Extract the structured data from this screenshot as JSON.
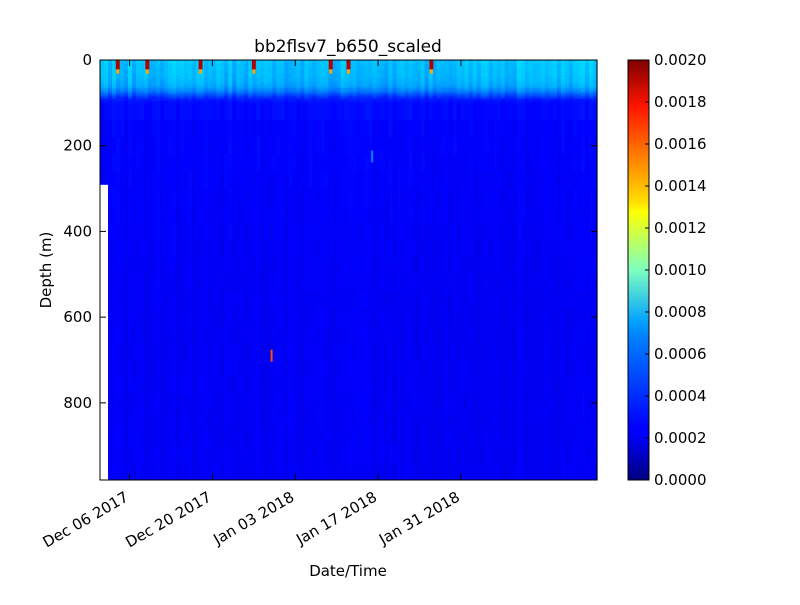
{
  "chart_data": {
    "type": "heatmap",
    "title": "bb2flsv7_b650_scaled",
    "xlabel": "Date/Time",
    "ylabel": "Depth (m)",
    "xlim": [
      "2017-12-01",
      "2018-02-23"
    ],
    "ylim": [
      980,
      0
    ],
    "x_ticks": [
      "Dec 06 2017",
      "Dec 20 2017",
      "Jan 03 2018",
      "Jan 17 2018",
      "Jan 31 2018"
    ],
    "x_tick_dates": [
      "2017-12-06",
      "2017-12-20",
      "2018-01-03",
      "2018-01-17",
      "2018-01-31"
    ],
    "y_ticks": [
      "0",
      "200",
      "400",
      "600",
      "800"
    ],
    "y_tick_values": [
      0,
      200,
      400,
      600,
      800
    ],
    "colorbar": {
      "range": [
        0,
        0.002
      ],
      "ticks": [
        "0.0000",
        "0.0002",
        "0.0004",
        "0.0006",
        "0.0008",
        "0.0010",
        "0.0012",
        "0.0014",
        "0.0016",
        "0.0018",
        "0.0020"
      ],
      "tick_values": [
        0,
        0.0002,
        0.0004,
        0.0006,
        0.0008,
        0.001,
        0.0012,
        0.0014,
        0.0016,
        0.0018,
        0.002
      ],
      "colormap": "jet"
    },
    "profile": {
      "depth": [
        0,
        20,
        40,
        60,
        75,
        85,
        95,
        150,
        300,
        600,
        980
      ],
      "value": [
        0.00063,
        0.00062,
        0.00061,
        0.00058,
        0.00048,
        0.00036,
        0.00028,
        0.00025,
        0.00024,
        0.00023,
        0.00023
      ]
    },
    "surface_peaks_dates": [
      "2017-12-04",
      "2017-12-09",
      "2017-12-18",
      "2017-12-27",
      "2018-01-09",
      "2018-01-12",
      "2018-01-26"
    ],
    "surface_peak_value": 0.0019,
    "deep_spots": [
      {
        "date": "2017-12-30",
        "depth": 690,
        "value": 0.0016
      },
      {
        "date": "2018-01-16",
        "depth": 225,
        "value": 0.0005
      }
    ],
    "data_start_date": "2017-12-01",
    "data_end_date": "2018-02-23",
    "deep_data_start_date": "2017-12-02",
    "early_max_depth": 290
  }
}
